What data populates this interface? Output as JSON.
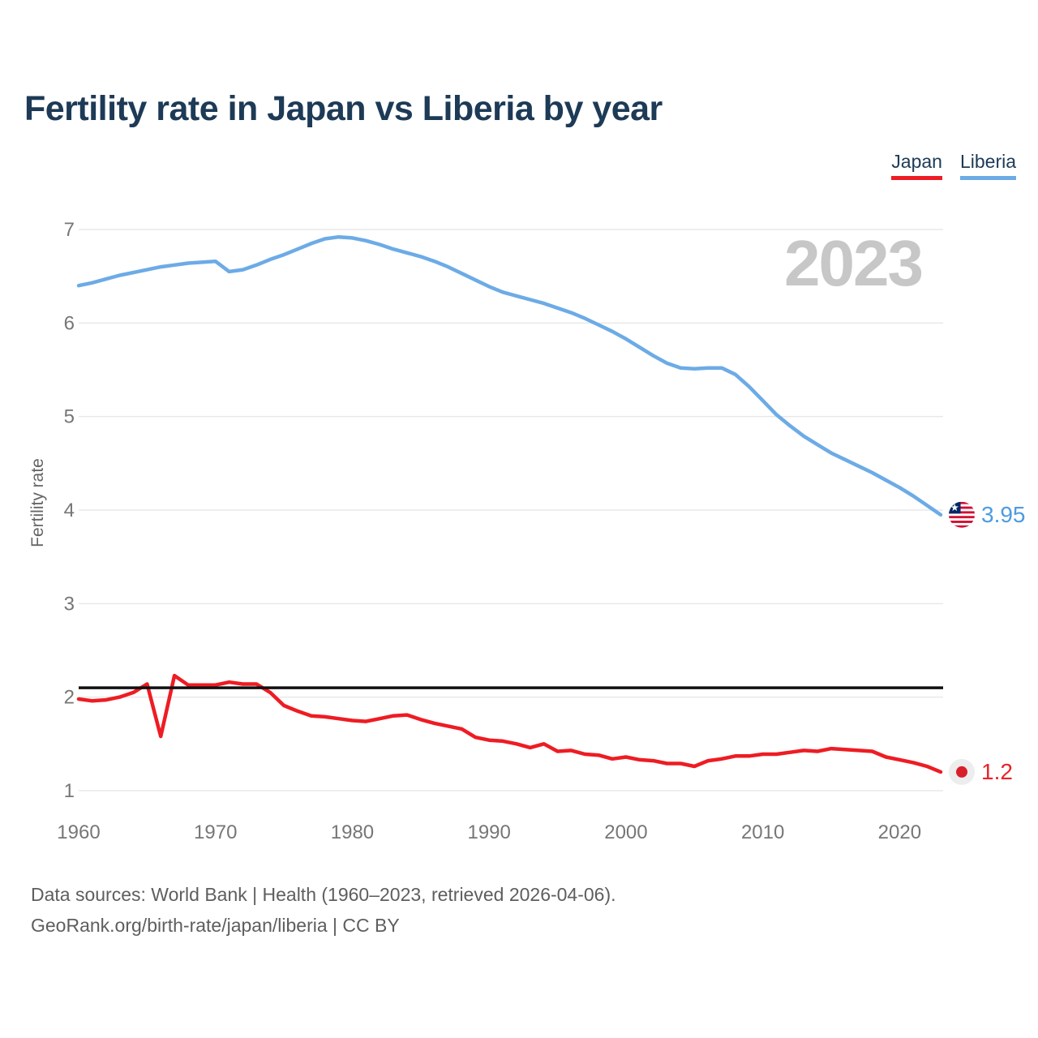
{
  "title": "Fertility rate in Japan vs Liberia by year",
  "watermark": "2023",
  "ylabel": "Fertility rate",
  "legend": [
    {
      "label": "Japan",
      "color": "#ee1c23"
    },
    {
      "label": "Liberia",
      "color": "#6cabe6"
    }
  ],
  "end_labels": {
    "liberia": {
      "value": "3.95",
      "color": "#4d9be0",
      "icon": "liberia-flag-icon"
    },
    "japan": {
      "value": "1.2",
      "color": "#e8232a",
      "icon": "japan-flag-icon"
    }
  },
  "footer": {
    "line1": "Data sources: World Bank | Health (1960–2023, retrieved 2026-04-06).",
    "line2": "GeoRank.org/birth-rate/japan/liberia | CC BY"
  },
  "chart_data": {
    "type": "line",
    "title": "Fertility rate in Japan vs Liberia by year",
    "xlabel": "",
    "ylabel": "Fertility rate",
    "xlim": [
      1960,
      2023
    ],
    "ylim": [
      1,
      7
    ],
    "x_ticks": [
      1960,
      1970,
      1980,
      1990,
      2000,
      2010,
      2020
    ],
    "y_ticks": [
      1,
      2,
      3,
      4,
      5,
      6,
      7
    ],
    "grid": "horizontal",
    "legend_position": "top-right",
    "reference_line": {
      "value": 2.1,
      "color": "#111111"
    },
    "x": [
      1960,
      1961,
      1962,
      1963,
      1964,
      1965,
      1966,
      1967,
      1968,
      1969,
      1970,
      1971,
      1972,
      1973,
      1974,
      1975,
      1976,
      1977,
      1978,
      1979,
      1980,
      1981,
      1982,
      1983,
      1984,
      1985,
      1986,
      1987,
      1988,
      1989,
      1990,
      1991,
      1992,
      1993,
      1994,
      1995,
      1996,
      1997,
      1998,
      1999,
      2000,
      2001,
      2002,
      2003,
      2004,
      2005,
      2006,
      2007,
      2008,
      2009,
      2010,
      2011,
      2012,
      2013,
      2014,
      2015,
      2016,
      2017,
      2018,
      2019,
      2020,
      2021,
      2022,
      2023
    ],
    "series": [
      {
        "name": "Liberia",
        "color": "#6cabe6",
        "values": [
          6.4,
          6.43,
          6.47,
          6.51,
          6.54,
          6.57,
          6.6,
          6.62,
          6.64,
          6.65,
          6.66,
          6.55,
          6.57,
          6.62,
          6.68,
          6.73,
          6.79,
          6.85,
          6.9,
          6.92,
          6.91,
          6.88,
          6.84,
          6.79,
          6.75,
          6.71,
          6.66,
          6.6,
          6.53,
          6.46,
          6.39,
          6.33,
          6.29,
          6.25,
          6.21,
          6.16,
          6.11,
          6.05,
          5.98,
          5.91,
          5.83,
          5.74,
          5.65,
          5.57,
          5.52,
          5.51,
          5.52,
          5.52,
          5.45,
          5.32,
          5.17,
          5.02,
          4.9,
          4.79,
          4.7,
          4.61,
          4.54,
          4.47,
          4.4,
          4.32,
          4.24,
          4.15,
          4.05,
          3.95
        ]
      },
      {
        "name": "Japan",
        "color": "#ee1c23",
        "values": [
          1.98,
          1.96,
          1.97,
          2.0,
          2.05,
          2.14,
          1.58,
          2.23,
          2.13,
          2.13,
          2.13,
          2.16,
          2.14,
          2.14,
          2.05,
          1.91,
          1.85,
          1.8,
          1.79,
          1.77,
          1.75,
          1.74,
          1.77,
          1.8,
          1.81,
          1.76,
          1.72,
          1.69,
          1.66,
          1.57,
          1.54,
          1.53,
          1.5,
          1.46,
          1.5,
          1.42,
          1.43,
          1.39,
          1.38,
          1.34,
          1.36,
          1.33,
          1.32,
          1.29,
          1.29,
          1.26,
          1.32,
          1.34,
          1.37,
          1.37,
          1.39,
          1.39,
          1.41,
          1.43,
          1.42,
          1.45,
          1.44,
          1.43,
          1.42,
          1.36,
          1.33,
          1.3,
          1.26,
          1.2
        ]
      }
    ]
  }
}
